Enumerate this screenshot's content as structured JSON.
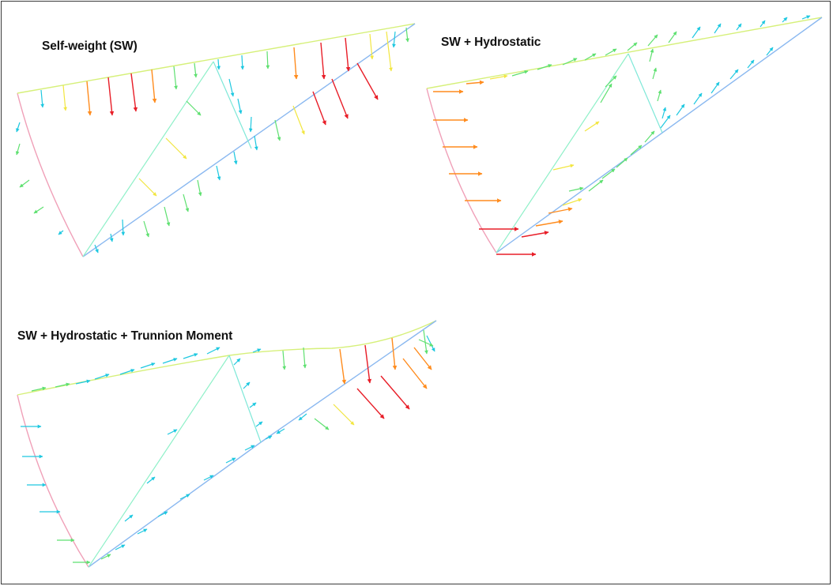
{
  "panels": [
    {
      "title": "Self-weight (SW)",
      "load_direction": "downward",
      "peak_region": "upper skin plate near mid-span"
    },
    {
      "title": "SW + Hydrostatic",
      "load_direction": "horizontal (upstream face) and along strut arms",
      "peak_region": "lower skin plate near sill"
    },
    {
      "title": "SW + Hydrostatic + Trunnion Moment",
      "load_direction": "downward on upper strut, horizontal on skin plate",
      "peak_region": "upper strut near trunnion"
    }
  ],
  "color_scale": {
    "low": "#1ec8e0",
    "mid_low": "#5ee070",
    "mid": "#f2e640",
    "mid_high": "#ff8c1e",
    "high": "#e81e28"
  },
  "member_colors": {
    "skin_plate": "#f0a0b8",
    "upper_arm": "#d6f07a",
    "lower_arm": "#8ab8f0",
    "diagonal": "#8ef0c8"
  }
}
